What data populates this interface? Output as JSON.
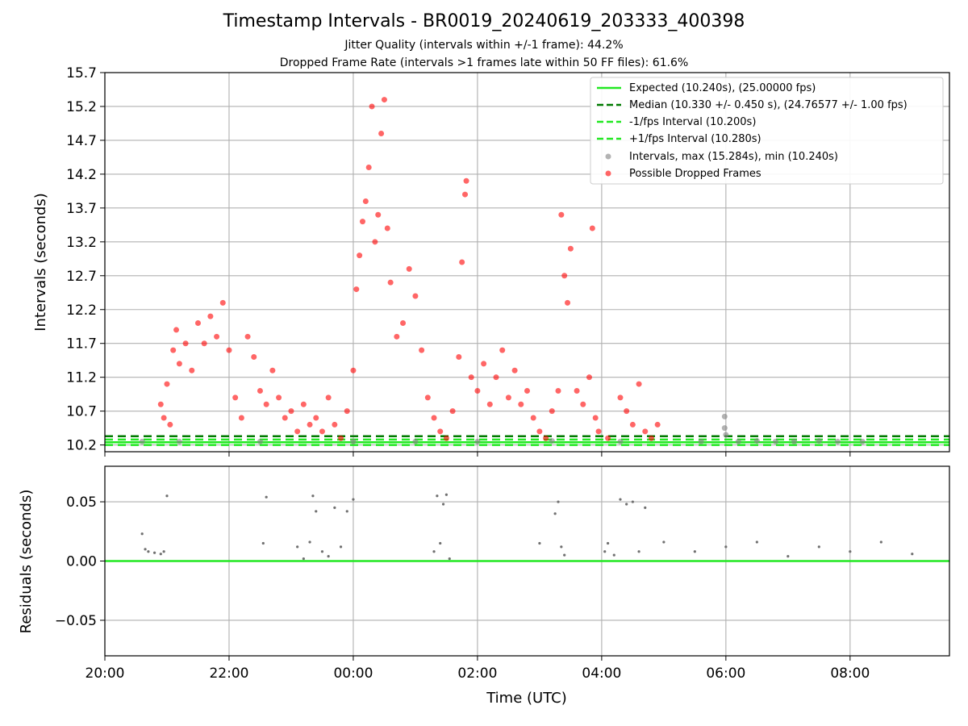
{
  "figure": {
    "title": "Timestamp Intervals - BR0019_20240619_203333_400398",
    "subtitle_1": "Jitter Quality (intervals within +/-1 frame): 44.2%",
    "subtitle_2": "Dropped Frame Rate (intervals >1 frames late within 50 FF files): 61.6%"
  },
  "chart_data": [
    {
      "type": "scatter",
      "ylabel": "Intervals (seconds)",
      "xlabel": "",
      "x_unit": "hours after 20:00 UTC (2024-06-19)",
      "xlim": [
        0.0,
        13.6
      ],
      "ylim": [
        10.1,
        15.7
      ],
      "xticks": [
        "20:00",
        "22:00",
        "00:00",
        "02:00",
        "04:00",
        "06:00",
        "08:00"
      ],
      "yticks": [
        "10.2",
        "10.7",
        "11.2",
        "11.7",
        "12.2",
        "12.7",
        "13.2",
        "13.7",
        "14.2",
        "14.7",
        "15.2",
        "15.7"
      ],
      "grid": true,
      "legend_position": "upper right",
      "reference_lines": [
        {
          "name": "Expected (10.240s), (25.00000 fps)",
          "y": 10.24,
          "style": "solid",
          "color": "#22e822"
        },
        {
          "name": "Median (10.330 +/- 0.450 s), (24.76577 +/- 1.00 fps)",
          "y": 10.33,
          "style": "dashed",
          "color": "#007a00"
        },
        {
          "name": "-1/fps Interval (10.200s)",
          "y": 10.2,
          "style": "dashed",
          "color": "#22e822"
        },
        {
          "name": "+1/fps Interval (10.280s)",
          "y": 10.28,
          "style": "dashed",
          "color": "#22e822"
        }
      ],
      "scatter_series": [
        {
          "name": "Intervals, max (15.284s), min (10.240s)",
          "color": "#808080",
          "max": 15.284,
          "min": 10.24
        },
        {
          "name": "Possible Dropped Frames",
          "color": "#ff0000"
        }
      ],
      "points": {
        "note_excluded": true,
        "intervals_gray": [
          [
            0.6,
            10.25
          ],
          [
            1.2,
            10.25
          ],
          [
            2.5,
            10.25
          ],
          [
            4.0,
            10.25
          ],
          [
            5.0,
            10.25
          ],
          [
            6.0,
            10.25
          ],
          [
            7.2,
            10.26
          ],
          [
            8.3,
            10.25
          ],
          [
            9.6,
            10.25
          ],
          [
            9.98,
            10.62
          ],
          [
            9.98,
            10.45
          ],
          [
            10.0,
            10.35
          ],
          [
            10.2,
            10.25
          ],
          [
            10.5,
            10.26
          ],
          [
            10.8,
            10.25
          ],
          [
            11.1,
            10.25
          ],
          [
            11.5,
            10.26
          ],
          [
            11.8,
            10.25
          ],
          [
            12.2,
            10.25
          ]
        ],
        "dropped_frames": [
          [
            0.9,
            10.8
          ],
          [
            0.95,
            10.6
          ],
          [
            1.0,
            11.1
          ],
          [
            1.05,
            10.5
          ],
          [
            1.1,
            11.6
          ],
          [
            1.15,
            11.9
          ],
          [
            1.2,
            11.4
          ],
          [
            1.3,
            11.7
          ],
          [
            1.4,
            11.3
          ],
          [
            1.5,
            12.0
          ],
          [
            1.6,
            11.7
          ],
          [
            1.7,
            12.1
          ],
          [
            1.8,
            11.8
          ],
          [
            1.9,
            12.3
          ],
          [
            2.0,
            11.6
          ],
          [
            2.1,
            10.9
          ],
          [
            2.2,
            10.6
          ],
          [
            2.3,
            11.8
          ],
          [
            2.4,
            11.5
          ],
          [
            2.5,
            11.0
          ],
          [
            2.6,
            10.8
          ],
          [
            2.7,
            11.3
          ],
          [
            2.8,
            10.9
          ],
          [
            2.9,
            10.6
          ],
          [
            3.0,
            10.7
          ],
          [
            3.1,
            10.4
          ],
          [
            3.2,
            10.8
          ],
          [
            3.3,
            10.5
          ],
          [
            3.4,
            10.6
          ],
          [
            3.5,
            10.4
          ],
          [
            3.6,
            10.9
          ],
          [
            3.7,
            10.5
          ],
          [
            3.8,
            10.3
          ],
          [
            3.9,
            10.7
          ],
          [
            4.0,
            11.3
          ],
          [
            4.05,
            12.5
          ],
          [
            4.1,
            13.0
          ],
          [
            4.15,
            13.5
          ],
          [
            4.2,
            13.8
          ],
          [
            4.25,
            14.3
          ],
          [
            4.3,
            15.2
          ],
          [
            4.35,
            13.2
          ],
          [
            4.4,
            13.6
          ],
          [
            4.45,
            14.8
          ],
          [
            4.5,
            15.3
          ],
          [
            4.55,
            13.4
          ],
          [
            4.6,
            12.6
          ],
          [
            4.7,
            11.8
          ],
          [
            4.8,
            12.0
          ],
          [
            4.9,
            12.8
          ],
          [
            5.0,
            12.4
          ],
          [
            5.1,
            11.6
          ],
          [
            5.2,
            10.9
          ],
          [
            5.3,
            10.6
          ],
          [
            5.4,
            10.4
          ],
          [
            5.5,
            10.3
          ],
          [
            5.6,
            10.7
          ],
          [
            5.7,
            11.5
          ],
          [
            5.75,
            12.9
          ],
          [
            5.8,
            13.9
          ],
          [
            5.82,
            14.1
          ],
          [
            5.9,
            11.2
          ],
          [
            6.0,
            11.0
          ],
          [
            6.1,
            11.4
          ],
          [
            6.2,
            10.8
          ],
          [
            6.3,
            11.2
          ],
          [
            6.4,
            11.6
          ],
          [
            6.5,
            10.9
          ],
          [
            6.6,
            11.3
          ],
          [
            6.7,
            10.8
          ],
          [
            6.8,
            11.0
          ],
          [
            6.9,
            10.6
          ],
          [
            7.0,
            10.4
          ],
          [
            7.1,
            10.3
          ],
          [
            7.2,
            10.7
          ],
          [
            7.3,
            11.0
          ],
          [
            7.35,
            13.6
          ],
          [
            7.4,
            12.7
          ],
          [
            7.45,
            12.3
          ],
          [
            7.5,
            13.1
          ],
          [
            7.6,
            11.0
          ],
          [
            7.7,
            10.8
          ],
          [
            7.8,
            11.2
          ],
          [
            7.85,
            13.4
          ],
          [
            7.9,
            10.6
          ],
          [
            7.95,
            10.4
          ],
          [
            8.1,
            10.3
          ],
          [
            8.3,
            10.9
          ],
          [
            8.4,
            10.7
          ],
          [
            8.5,
            10.5
          ],
          [
            8.6,
            11.1
          ],
          [
            8.7,
            10.4
          ],
          [
            8.8,
            10.3
          ],
          [
            8.9,
            10.5
          ]
        ]
      }
    },
    {
      "type": "scatter",
      "ylabel": "Residuals (seconds)",
      "xlabel": "Time (UTC)",
      "xlim": [
        0.0,
        13.6
      ],
      "ylim": [
        -0.08,
        0.08
      ],
      "xticks": [
        "20:00",
        "22:00",
        "00:00",
        "02:00",
        "04:00",
        "06:00",
        "08:00"
      ],
      "yticks": [
        "−0.05",
        "0.00",
        "0.05"
      ],
      "grid": true,
      "reference_lines": [
        {
          "y": 0.0,
          "style": "solid",
          "color": "#22e822"
        }
      ],
      "points": {
        "residuals_gray": [
          [
            0.6,
            0.023
          ],
          [
            0.65,
            0.01
          ],
          [
            0.7,
            0.008
          ],
          [
            0.8,
            0.007
          ],
          [
            0.9,
            0.006
          ],
          [
            0.95,
            0.008
          ],
          [
            1.0,
            0.055
          ],
          [
            2.55,
            0.015
          ],
          [
            2.6,
            0.054
          ],
          [
            3.1,
            0.012
          ],
          [
            3.2,
            0.002
          ],
          [
            3.3,
            0.016
          ],
          [
            3.35,
            0.055
          ],
          [
            3.4,
            0.042
          ],
          [
            3.5,
            0.008
          ],
          [
            3.6,
            0.004
          ],
          [
            3.7,
            0.045
          ],
          [
            3.8,
            0.012
          ],
          [
            3.9,
            0.042
          ],
          [
            4.0,
            0.052
          ],
          [
            5.3,
            0.008
          ],
          [
            5.35,
            0.055
          ],
          [
            5.4,
            0.015
          ],
          [
            5.45,
            0.048
          ],
          [
            5.5,
            0.056
          ],
          [
            5.55,
            0.002
          ],
          [
            7.0,
            0.015
          ],
          [
            7.25,
            0.04
          ],
          [
            7.3,
            0.05
          ],
          [
            7.35,
            0.012
          ],
          [
            7.4,
            0.005
          ],
          [
            8.05,
            0.008
          ],
          [
            8.1,
            0.015
          ],
          [
            8.2,
            0.005
          ],
          [
            8.3,
            0.052
          ],
          [
            8.4,
            0.048
          ],
          [
            8.5,
            0.05
          ],
          [
            8.6,
            0.008
          ],
          [
            8.7,
            0.045
          ],
          [
            9.0,
            0.016
          ],
          [
            9.5,
            0.008
          ],
          [
            10.0,
            0.012
          ],
          [
            10.5,
            0.016
          ],
          [
            11.0,
            0.004
          ],
          [
            11.5,
            0.012
          ],
          [
            12.0,
            0.008
          ],
          [
            12.5,
            0.016
          ],
          [
            13.0,
            0.006
          ]
        ]
      }
    }
  ]
}
